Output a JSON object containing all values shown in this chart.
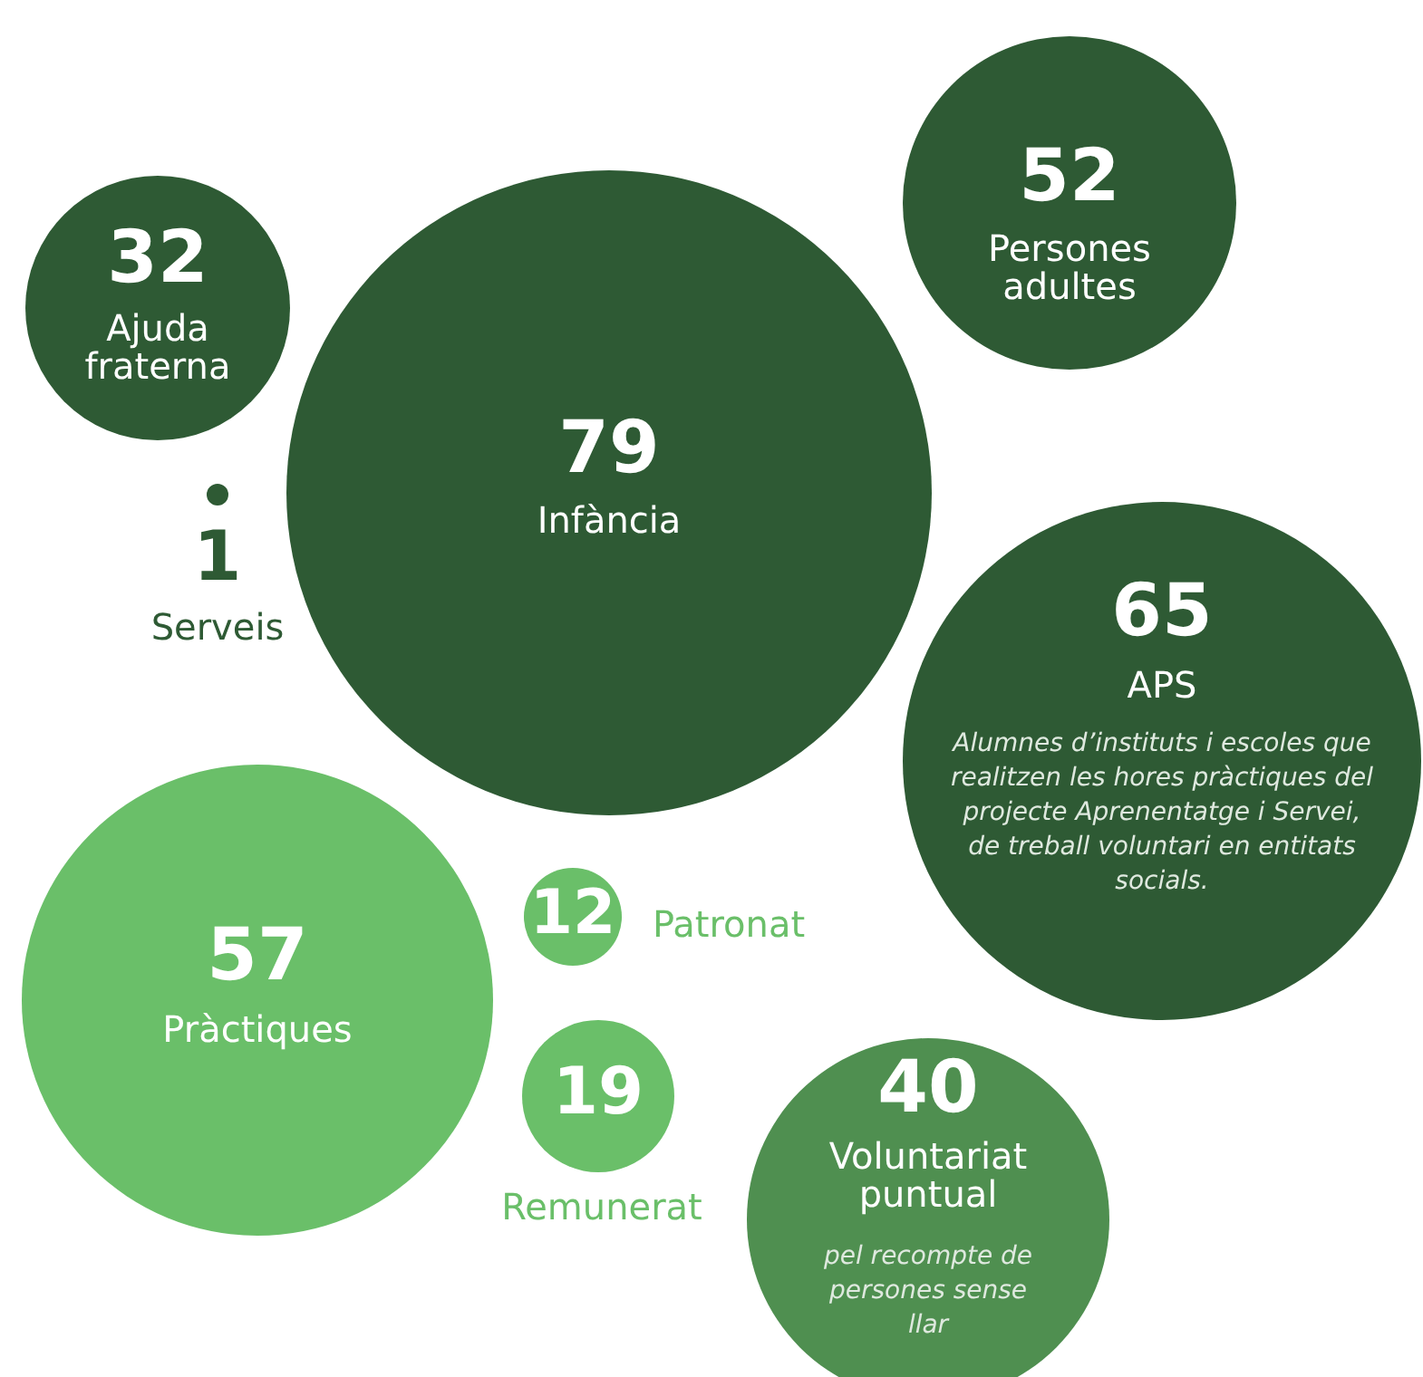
{
  "chart_data": {
    "type": "other",
    "categories": [
      "Ajuda fraterna",
      "Serveis",
      "Infància",
      "Persones adultes",
      "APS",
      "Pràctiques",
      "Patronat",
      "Remunerat",
      "Voluntariat puntual"
    ],
    "values": [
      32,
      1,
      79,
      52,
      65,
      57,
      12,
      19,
      40
    ],
    "colors": [
      "#2e5a34",
      "#2e5a34",
      "#2e5a34",
      "#2e5a34",
      "#2e5a34",
      "#6abf69",
      "#6abf69",
      "#6abf69",
      "#4f8f50"
    ],
    "data_labels": true,
    "annotations": [
      "Alumnes d’instituts i escoles que realitzen les hores pràctiques del projecte Aprenentatge i Servei, de treball voluntari en entitats socials.",
      "pel recompte de persones sense llar"
    ]
  }
}
